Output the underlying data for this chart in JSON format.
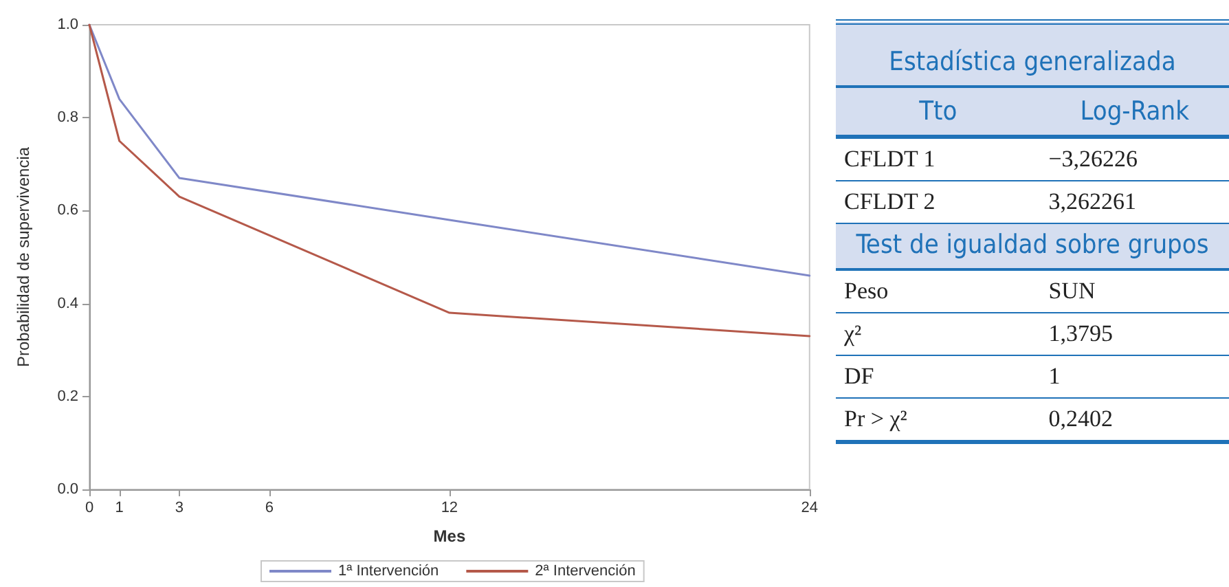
{
  "chart_data": [
    {
      "type": "line",
      "xlabel": "Mes",
      "ylabel": "Probabilidad de supervivencia",
      "xlim": [
        0,
        24
      ],
      "xticks": [
        0,
        1,
        3,
        6,
        12,
        24
      ],
      "ylim": [
        0,
        1
      ],
      "yticks": [
        {
          "value": 0,
          "label": "0.0"
        },
        {
          "value": 0.2,
          "label": "0.2"
        },
        {
          "value": 0.4,
          "label": "0.4"
        },
        {
          "value": 0.6,
          "label": "0.6"
        },
        {
          "value": 0.8,
          "label": "0.8"
        },
        {
          "value": 1,
          "label": "1.0"
        }
      ],
      "grid": false,
      "legend": "bottom",
      "marker": "none",
      "line_style": "solid",
      "series": [
        {
          "name": "1ª Intervención",
          "color": "#7f88c8",
          "x": [
            0,
            1,
            3,
            12,
            24
          ],
          "values": [
            1,
            0.84,
            0.67,
            0.58,
            0.46
          ]
        },
        {
          "name": "2ª Intervención",
          "color": "#b5594a",
          "x": [
            0,
            1,
            3,
            12,
            24
          ],
          "values": [
            1,
            0.75,
            0.63,
            0.38,
            0.33
          ]
        }
      ]
    },
    {
      "type": "other",
      "annotations": [
        "Estadística generalizada",
        "Tto",
        "Log-Rank",
        "CFLDT 1",
        "−3,26226",
        "CFLDT 2",
        "3,262261",
        "Test de igualdad sobre grupos",
        "Peso",
        "SUN",
        "χ²",
        "1,3795",
        "DF",
        "1",
        "Pr > χ²",
        "0,2402"
      ]
    }
  ]
}
